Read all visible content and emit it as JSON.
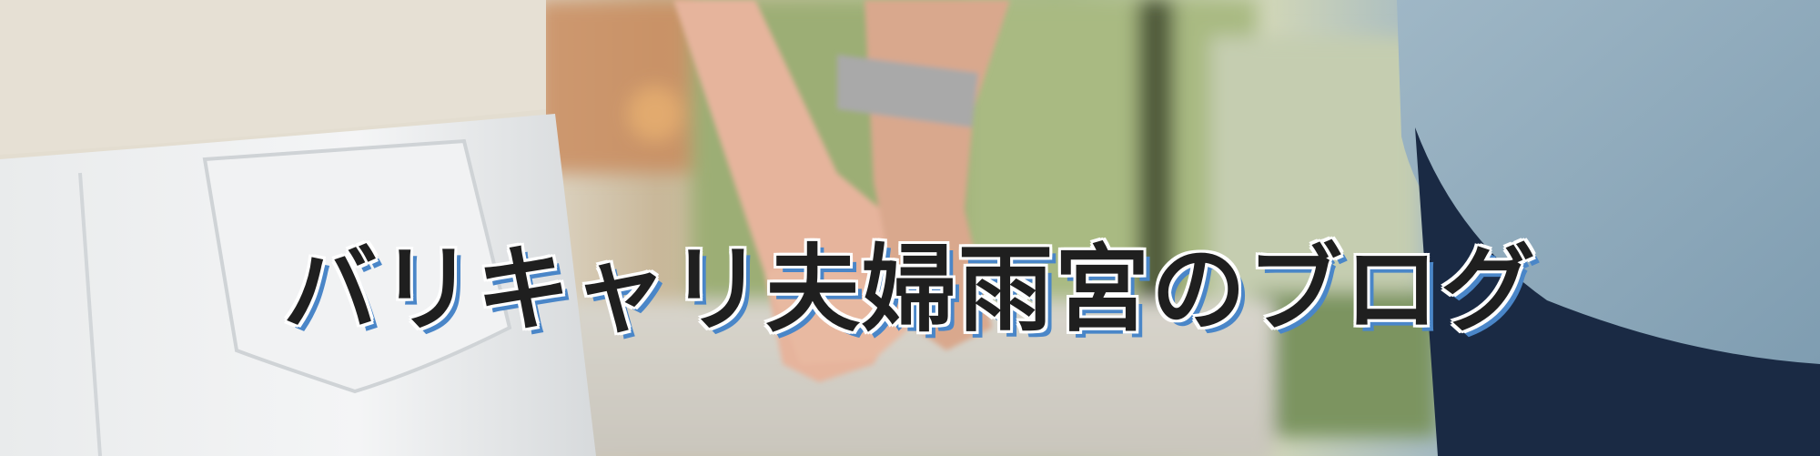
{
  "header": {
    "title": "バリキャリ夫婦雨宮のブログ"
  },
  "colors": {
    "title_text": "#1f1f1f",
    "title_outline": "#ffffff",
    "title_shadow": "#4a86c8"
  }
}
